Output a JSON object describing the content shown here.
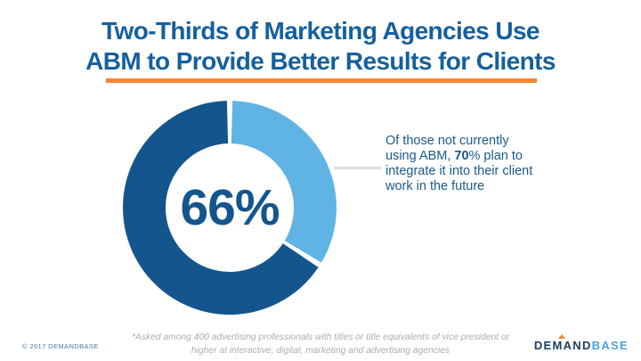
{
  "header": {
    "title_line1": "Two-Thirds of Marketing Agencies Use",
    "title_line2": "ABM to Provide Better Results for Clients",
    "rule_color": "#f58634"
  },
  "chart_data": {
    "type": "pie",
    "variant": "donut",
    "title": "Two-Thirds of Marketing Agencies Use ABM to Provide Better Results for Clients",
    "segments": [
      {
        "value": 34,
        "color": "#5fb4e5",
        "label": ""
      },
      {
        "value": 66,
        "color": "#14558d",
        "label": "66%"
      }
    ],
    "center_label": "66%",
    "start_angle_deg": 0,
    "clockwise": true,
    "gap_deg": 3,
    "inner_radius_ratio": 0.6,
    "annotation": "Of those not currently using ABM, 70% plan to integrate it into their client work in the future",
    "footnote": "*Asked among 400 advertising professionals with titles or title equivalents of vice president or higher at interactive, digital, marketing and advertising agencies",
    "legend": "none",
    "grid": false
  },
  "annotation": {
    "pre": "Of those not currently using ABM, ",
    "bold": "70",
    "post": "% plan to integrate it into their client work in the future"
  },
  "footnote": {
    "line1": "*Asked among 400 advertising professionals with titles or title equivalents of vice president or",
    "line2": "higher at interactive, digital, marketing and advertising agencies"
  },
  "footer": {
    "copyright": "© 2017 DEMANDBASE",
    "logo_part1": "DEMAND",
    "logo_part2": "BASE"
  },
  "colors": {
    "title_blue": "#15609e",
    "accent_orange": "#f58634",
    "donut_dark_blue": "#14558d",
    "donut_light_blue": "#5fb4e5",
    "annotation_blue": "#1a5a8c",
    "leader_line_gray": "#d6dee5",
    "footnote_gray": "#a9acae",
    "logo_navy": "#1c3d5e",
    "logo_light_blue": "#4aa3d9"
  }
}
